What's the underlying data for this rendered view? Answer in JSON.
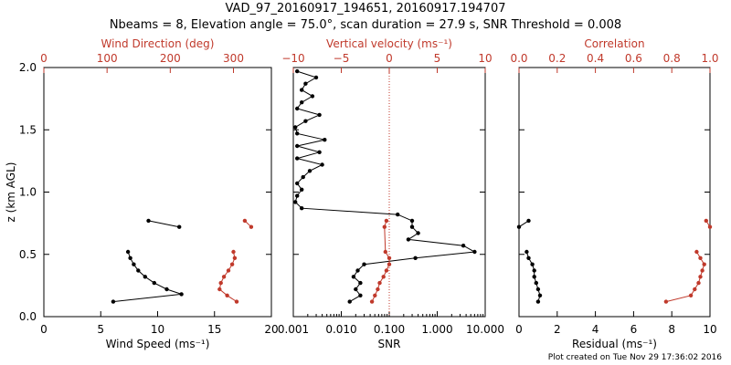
{
  "title_line1": "VAD_97_20160917_194651, 20160917.194707",
  "title_line2": "Nbeams = 8, Elevation angle = 75.0°, scan duration = 27.9 s, SNR Threshold = 0.008",
  "footer": "Plot created on Tue Nov 29 17:36:02 2016",
  "colors": {
    "black": "#000000",
    "red": "#c0392b"
  },
  "chart_data": [
    {
      "type": "scatter",
      "ylabel": "z (km AGL)",
      "ylim": [
        0,
        2.0
      ],
      "y_ticks": [
        "0.0",
        "0.5",
        "1.0",
        "1.5",
        "2.0"
      ],
      "bottom_axis": {
        "label": "Wind Speed (ms⁻¹)",
        "range": [
          0,
          20
        ],
        "ticks": [
          "0",
          "5",
          "10",
          "15",
          "20"
        ]
      },
      "top_axis": {
        "label": "Wind Direction (deg)",
        "range": [
          0,
          360
        ],
        "ticks": [
          "0",
          "100",
          "200",
          "300"
        ]
      },
      "series": [
        {
          "axis": "bottom",
          "color": "black",
          "z": [
            0.12,
            0.18,
            0.22,
            0.27,
            0.32,
            0.37,
            0.42,
            0.47,
            0.52
          ],
          "values": [
            6.1,
            12.1,
            10.8,
            9.7,
            8.9,
            8.3,
            7.9,
            7.6,
            7.4
          ]
        },
        {
          "axis": "bottom",
          "color": "black",
          "z": [
            0.77,
            0.72
          ],
          "values": [
            9.2,
            11.9
          ]
        },
        {
          "axis": "top",
          "color": "red",
          "z": [
            0.12,
            0.17,
            0.22,
            0.27,
            0.32,
            0.37,
            0.42,
            0.47,
            0.52
          ],
          "values": [
            305,
            290,
            278,
            280,
            285,
            292,
            298,
            302,
            300
          ]
        },
        {
          "axis": "top",
          "color": "red",
          "z": [
            0.77,
            0.72
          ],
          "values": [
            318,
            328
          ]
        }
      ]
    },
    {
      "type": "line",
      "bottom_axis": {
        "label": "SNR",
        "scale": "log",
        "range": [
          0.001,
          10
        ],
        "ticks": [
          "0.001",
          "0.010",
          "0.100",
          "1.000",
          "10.000"
        ]
      },
      "top_axis": {
        "label": "Vertical velocity (ms⁻¹)",
        "range": [
          -10,
          10
        ],
        "ticks": [
          "−10",
          "−5",
          "0",
          "5",
          "10"
        ],
        "zero_line": "dotted red"
      },
      "series": [
        {
          "axis": "bottom",
          "color": "black",
          "z": [
            0.12,
            0.17,
            0.22,
            0.27,
            0.32,
            0.37,
            0.42,
            0.47,
            0.52,
            0.57,
            0.62,
            0.67,
            0.72,
            0.77,
            0.82,
            0.87,
            0.92,
            0.97,
            1.02,
            1.07,
            1.12,
            1.17,
            1.22,
            1.27,
            1.32,
            1.37,
            1.42,
            1.47,
            1.52,
            1.57,
            1.62,
            1.67,
            1.72,
            1.77,
            1.82,
            1.87,
            1.92,
            1.97
          ],
          "values": [
            0.015,
            0.025,
            0.02,
            0.025,
            0.018,
            0.022,
            0.03,
            0.35,
            6.0,
            3.5,
            0.25,
            0.4,
            0.3,
            0.3,
            0.15,
            0.0015,
            0.0011,
            0.0012,
            0.0015,
            0.0012,
            0.0016,
            0.0022,
            0.004,
            0.0012,
            0.0035,
            0.0012,
            0.0045,
            0.0012,
            0.0011,
            0.0018,
            0.0035,
            0.0012,
            0.0015,
            0.0025,
            0.0015,
            0.0018,
            0.003,
            0.0012
          ]
        },
        {
          "axis": "top",
          "color": "red",
          "z": [
            0.12,
            0.17,
            0.22,
            0.27,
            0.32,
            0.37,
            0.42,
            0.47,
            0.52,
            0.72,
            0.77
          ],
          "values": [
            -1.8,
            -1.5,
            -1.2,
            -1.0,
            -0.6,
            -0.3,
            0.0,
            0.0,
            -0.4,
            -0.5,
            -0.3
          ]
        }
      ]
    },
    {
      "type": "scatter",
      "bottom_axis": {
        "label": "Residual (ms⁻¹)",
        "range": [
          0,
          10
        ],
        "ticks": [
          "0",
          "2",
          "4",
          "6",
          "8",
          "10"
        ]
      },
      "top_axis": {
        "label": "Correlation",
        "range": [
          0,
          1.0
        ],
        "ticks": [
          "0.0",
          "0.2",
          "0.4",
          "0.6",
          "0.8",
          "1.0"
        ]
      },
      "series": [
        {
          "axis": "bottom",
          "color": "black",
          "z": [
            0.12,
            0.17,
            0.22,
            0.27,
            0.32,
            0.37,
            0.42,
            0.47,
            0.52
          ],
          "values": [
            1.0,
            1.1,
            1.0,
            0.9,
            0.8,
            0.8,
            0.7,
            0.5,
            0.4
          ]
        },
        {
          "axis": "bottom",
          "color": "black",
          "z": [
            0.77,
            0.72
          ],
          "values": [
            0.5,
            0.0
          ]
        },
        {
          "axis": "top",
          "color": "red",
          "z": [
            0.12,
            0.17,
            0.22,
            0.27,
            0.32,
            0.37,
            0.42,
            0.47,
            0.52
          ],
          "values": [
            0.77,
            0.9,
            0.92,
            0.94,
            0.95,
            0.96,
            0.97,
            0.95,
            0.93
          ]
        },
        {
          "axis": "top",
          "color": "red",
          "z": [
            0.77,
            0.72
          ],
          "values": [
            0.98,
            1.0
          ]
        }
      ]
    }
  ]
}
